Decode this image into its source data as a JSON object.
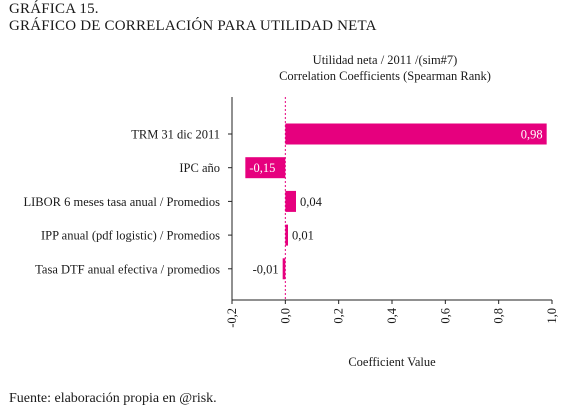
{
  "heading": {
    "label": "GRÁFICA 15.",
    "title": "GRÁFICO DE CORRELACIÓN PARA UTILIDAD NETA"
  },
  "source_note": "Fuente: elaboración propia en @risk.",
  "chart_data": {
    "type": "bar",
    "orientation": "horizontal",
    "title": "Utilidad neta / 2011 /(sim#7)",
    "subtitle": "Correlation Coefficients (Spearman Rank)",
    "xlabel": "Coefficient Value",
    "ylabel": "",
    "categories": [
      "TRM 31 dic 2011",
      "IPC año",
      "LIBOR 6 meses tasa anual / Promedios",
      "IPP anual (pdf logistic) / Promedios",
      "Tasa DTF anual efectiva / promedios"
    ],
    "values": [
      0.98,
      -0.15,
      0.04,
      0.01,
      -0.01
    ],
    "value_labels": [
      "0,98",
      "-0,15",
      "0,04",
      "0,01",
      "-0,01"
    ],
    "xlim": [
      -0.2,
      1.0
    ],
    "x_ticks": [
      -0.2,
      0.0,
      0.2,
      0.4,
      0.6,
      0.8,
      1.0
    ],
    "x_tick_labels": [
      "-0,2",
      "0,0",
      "0,2",
      "0,4",
      "0,6",
      "0,8",
      "1,0"
    ],
    "grid": false,
    "zero_line": "dashed",
    "bar_color": "#e6007e"
  }
}
